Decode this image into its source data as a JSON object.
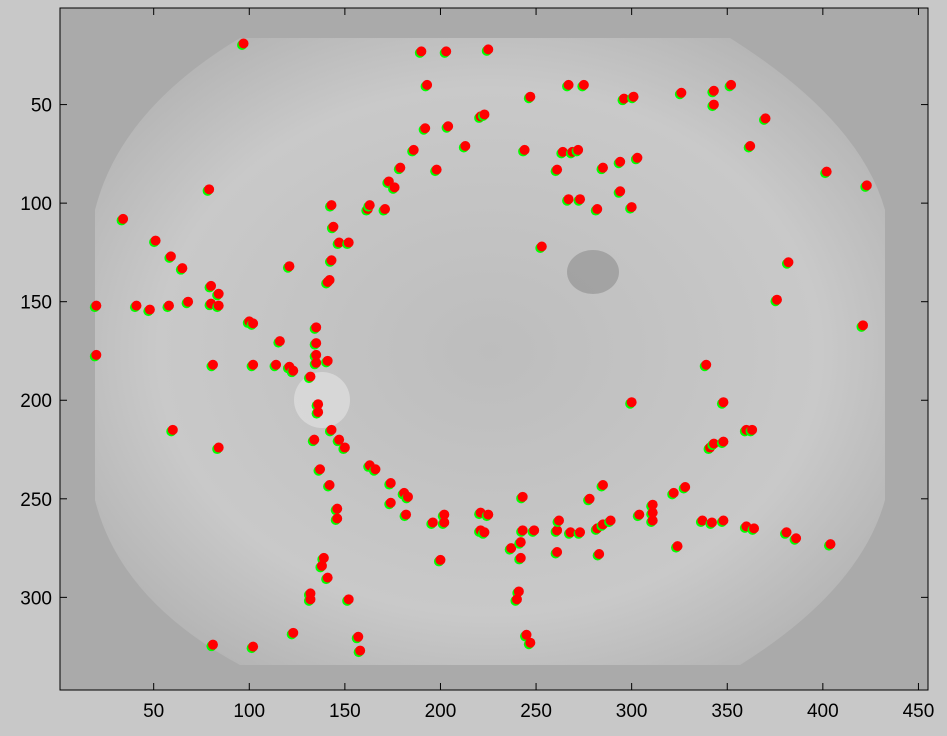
{
  "chart_data": {
    "type": "scatter",
    "x": [
      97,
      190,
      203,
      225,
      193,
      247,
      267,
      275,
      296,
      301,
      326,
      343,
      352,
      343,
      370,
      192,
      204,
      221,
      223,
      213,
      244,
      264,
      269,
      272,
      294,
      303,
      285,
      261,
      362,
      402,
      423,
      198,
      186,
      179,
      173,
      176,
      171,
      162,
      163,
      267,
      273,
      282,
      300,
      294,
      253,
      79,
      143,
      144,
      147,
      152,
      143,
      142,
      141,
      34,
      51,
      59,
      65,
      121,
      80,
      84,
      20,
      41,
      48,
      58,
      68,
      80,
      84,
      100,
      102,
      116,
      135,
      135,
      20,
      81,
      102,
      114,
      121,
      123,
      132,
      135,
      135,
      141,
      136,
      136,
      60,
      84,
      134,
      143,
      147,
      150,
      163,
      166,
      137,
      142,
      174,
      181,
      183,
      174,
      182,
      146,
      146,
      196,
      202,
      202,
      221,
      225,
      221,
      223,
      243,
      243,
      249,
      261,
      262,
      268,
      273,
      282,
      285,
      289,
      278,
      285,
      304,
      311,
      311,
      311,
      322,
      328,
      337,
      342,
      348,
      360,
      364,
      381,
      386,
      404,
      324,
      237,
      242,
      242,
      261,
      283,
      200,
      139,
      138,
      141,
      132,
      132,
      152,
      241,
      240,
      123,
      157,
      158,
      245,
      247,
      81,
      102,
      339,
      341,
      343,
      348,
      348,
      360,
      363,
      376,
      382,
      300,
      421
    ],
    "values": [
      19,
      23,
      23,
      22,
      40,
      46,
      40,
      40,
      47,
      46,
      44,
      43,
      40,
      50,
      57,
      62,
      61,
      56,
      55,
      71,
      73,
      74,
      74,
      73,
      79,
      77,
      82,
      83,
      71,
      84,
      91,
      83,
      73,
      82,
      89,
      92,
      103,
      103,
      101,
      98,
      98,
      103,
      102,
      94,
      122,
      93,
      101,
      112,
      120,
      120,
      129,
      139,
      140,
      108,
      119,
      127,
      133,
      132,
      142,
      146,
      152,
      152,
      154,
      152,
      150,
      151,
      152,
      160,
      161,
      170,
      163,
      171,
      177,
      182,
      182,
      182,
      183,
      185,
      188,
      177,
      181,
      180,
      202,
      206,
      215,
      224,
      220,
      215,
      220,
      224,
      233,
      235,
      235,
      243,
      242,
      247,
      249,
      252,
      258,
      255,
      260,
      262,
      258,
      262,
      257,
      258,
      266,
      267,
      249,
      266,
      266,
      266,
      261,
      267,
      267,
      265,
      263,
      261,
      250,
      243,
      258,
      253,
      257,
      261,
      247,
      244,
      261,
      262,
      261,
      264,
      265,
      267,
      270,
      273,
      274,
      275,
      272,
      280,
      277,
      278,
      281,
      280,
      284,
      290,
      298,
      301,
      301,
      297,
      301,
      318,
      320,
      327,
      319,
      323,
      324,
      325,
      182,
      224,
      222,
      221,
      201,
      215,
      215,
      149,
      130,
      201,
      162
    ],
    "color": "#ff0000",
    "edge_color": "#00ff00",
    "xlim": [
      1,
      455
    ],
    "ylim": [
      1,
      347
    ],
    "y_reversed": true,
    "xticks": [
      50,
      100,
      150,
      200,
      250,
      300,
      350,
      400,
      450
    ],
    "yticks": [
      50,
      100,
      150,
      200,
      250,
      300
    ]
  }
}
